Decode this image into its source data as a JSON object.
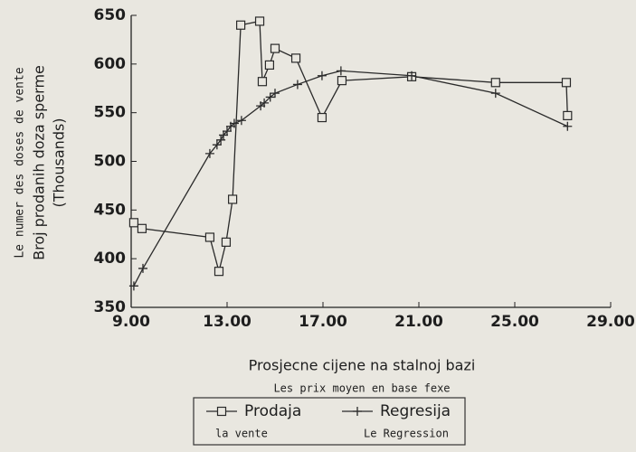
{
  "chart_data": {
    "type": "line",
    "ylabel_fr": "Le numer des doses de vente",
    "ylabel": "Broj prodanih doza sperme",
    "ylabel_unit": "(Thousands)",
    "xlabel": "Prosjecne cijene na stalnoj bazi",
    "xlabel_fr": "Les prix moyen en base fexe",
    "xlim": [
      9,
      29
    ],
    "xticks": [
      {
        "value": 9,
        "label": "9.00"
      },
      {
        "value": 13,
        "label": "13.00"
      },
      {
        "value": 17,
        "label": "17.00"
      },
      {
        "value": 21,
        "label": "21.00"
      },
      {
        "value": 25,
        "label": "25.00"
      },
      {
        "value": 29,
        "label": "29.00"
      }
    ],
    "ylim": [
      350,
      650
    ],
    "yticks": [
      350,
      400,
      450,
      500,
      550,
      600,
      650
    ],
    "series": [
      {
        "name": "Prodaja",
        "name_fr": "la vente",
        "marker": "square",
        "color": "#2a2a2a",
        "x": [
          9.11,
          9.45,
          12.28,
          12.66,
          12.96,
          13.23,
          13.57,
          14.36,
          14.47,
          14.77,
          15.0,
          15.87,
          16.96,
          17.79,
          20.7,
          24.2,
          27.15,
          27.2
        ],
        "values": [
          437,
          431,
          422,
          387,
          417,
          461,
          640,
          644,
          582,
          599,
          616,
          606,
          545,
          583,
          587,
          581,
          581,
          547
        ]
      },
      {
        "name": "Regresija",
        "name_fr": "Le Regression",
        "marker": "plus",
        "color": "#2a2a2a",
        "x": [
          9.11,
          9.49,
          12.28,
          12.58,
          12.74,
          12.85,
          13.0,
          13.15,
          13.3,
          13.6,
          14.4,
          14.55,
          14.8,
          15.0,
          15.94,
          16.96,
          17.75,
          20.7,
          24.2,
          27.2
        ],
        "values": [
          372,
          390,
          508,
          517,
          522,
          527,
          531,
          536,
          539,
          542,
          557,
          560,
          566,
          570,
          579,
          588,
          593,
          588,
          570,
          536
        ]
      }
    ]
  }
}
